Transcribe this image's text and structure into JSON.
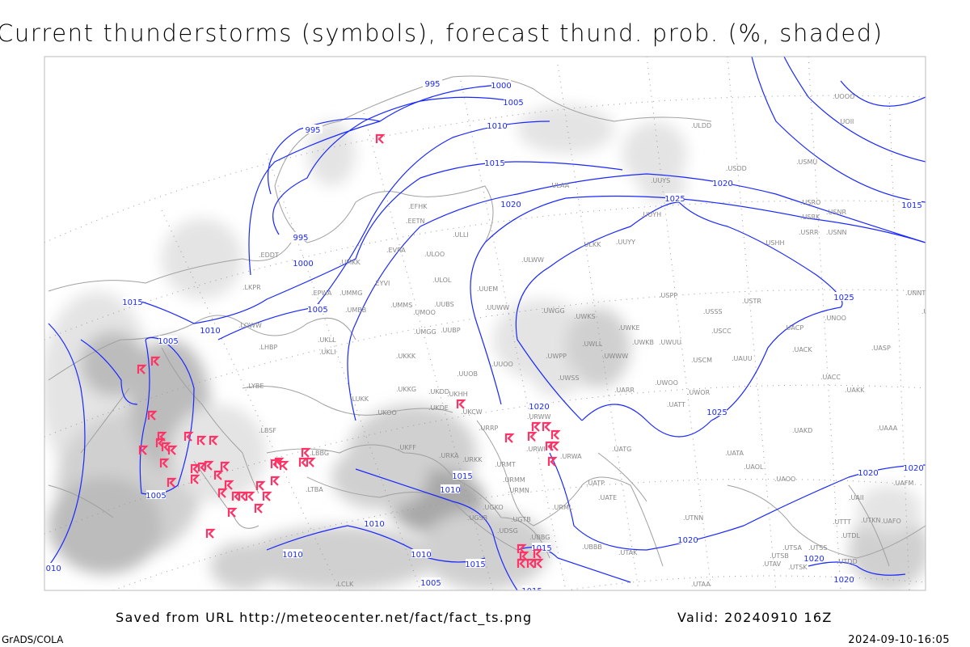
{
  "title": "Current thunderstorms (symbols), forecast thund. prob. (%, shaded)",
  "footer": {
    "saved_from": "Saved from URL http://meteocenter.net/fact/fact_ts.png",
    "valid": "Valid: 20240910 16Z",
    "software": "GrADS/COLA",
    "timestamp": "2024-09-10-16:05"
  },
  "colors": {
    "isobar": "#1a28ff",
    "thunderstorm_symbol": "#ff3366",
    "borders": "#a0a0a0",
    "probability_shading": [
      "#e4e4e4",
      "#d0d0d0",
      "#bcbcbc",
      "#a8a8a8"
    ]
  },
  "legend": {
    "symbol_icon": "thunderstorm-symbol-icon",
    "shading_meaning": "forecast thunderstorm probability (%)"
  },
  "isobar_labels": [
    "995",
    "1000",
    "1005",
    "995",
    "1010",
    "1015",
    "1020",
    "1020",
    "1025",
    "1015",
    "995",
    "1000",
    "1005",
    "1010",
    "1015",
    "1005",
    "1025",
    "1025",
    "1020",
    "1005",
    "1010",
    "1015",
    "1010",
    "1010",
    "1010",
    "1015",
    "1015",
    "1005",
    "1015",
    "1010",
    "1020",
    "1020",
    "1020",
    "1020",
    "1020"
  ],
  "stations": [
    "ULDD",
    "UUYS",
    "USDD",
    "USMU",
    "UOOO",
    "UOII",
    "UUYH",
    "USRO",
    "USRK",
    "USNR",
    "USRR",
    "USNN",
    "ULKK",
    "UUYY",
    "USHH",
    "ULWW",
    "UUEM",
    "USPP",
    "USSS",
    "USTR",
    "UUWW",
    "UWGG",
    "UWKS",
    "UWKE",
    "UWKB",
    "UWUU",
    "UWLL",
    "UWWW",
    "USCC",
    "UACP",
    "UNOO",
    "UNNT",
    "UNBB",
    "UASP",
    "UACK",
    "USCM",
    "UAUU",
    "UWPP",
    "UWSS",
    "UACC",
    "UAKK",
    "UWOO",
    "UWOR",
    "UARR",
    "UATT",
    "URWW",
    "URWI",
    "URRP",
    "UKCW",
    "UUOB",
    "UUOO",
    "UKHH",
    "UKDD",
    "UKDE",
    "UKOO",
    "UKKK",
    "UKKG",
    "UKFF",
    "URKA",
    "URKK",
    "URMT",
    "URMM",
    "URMN",
    "UATG",
    "UATA",
    "UAOL",
    "UAOO",
    "UATE",
    "UATP",
    "UAKD",
    "UAAA",
    "UAFM",
    "UAII",
    "UTNN",
    "UTAK",
    "UBBB",
    "URML",
    "UGKO",
    "UGSB",
    "UGTB",
    "UDSG",
    "UBBG",
    "URWA",
    "UTSA",
    "UTSS",
    "UTSB",
    "UTAV",
    "UTSK",
    "UTDD",
    "UTDL",
    "UTTT",
    "UTKN",
    "UAFO",
    "UTAA",
    "EDDT",
    "LKPR",
    "EPWA",
    "UMMG",
    "EYVI",
    "UMBB",
    "UMKK",
    "EVRA",
    "ULOO",
    "ULOL",
    "UMMS",
    "UMOO",
    "UUBS",
    "UMGG",
    "UUBP",
    "LOWW",
    "LHBP",
    "UKLL",
    "UKLI",
    "LUKK",
    "LYBE",
    "LBSF",
    "LBBG",
    "LTBA",
    "EFHK",
    "EETN",
    "ULLI",
    "ULAA",
    "LCLK"
  ]
}
